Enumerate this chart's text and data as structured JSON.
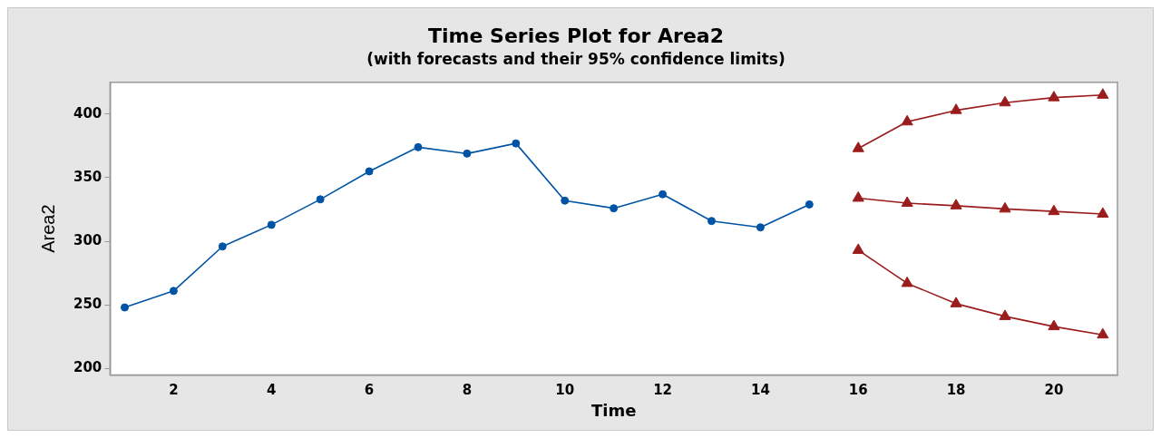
{
  "chart_data": {
    "type": "line",
    "title": "Time Series Plot for Area2",
    "subtitle": "(with forecasts and their 95% confidence limits)",
    "xlabel": "Time",
    "ylabel": "Area2",
    "xlim": [
      0.7,
      21.3
    ],
    "xticks": [
      2,
      4,
      6,
      8,
      10,
      12,
      14,
      16,
      18,
      20
    ],
    "ylim": [
      195,
      425
    ],
    "yticks": [
      200,
      250,
      300,
      350,
      400
    ],
    "grid": false,
    "legend": false,
    "line_style": "solid",
    "series": [
      {
        "color": "#0054a6",
        "marker": "circle",
        "x": [
          1,
          2,
          3,
          4,
          5,
          6,
          7,
          8,
          9,
          10,
          11,
          12,
          13,
          14,
          15
        ],
        "values": [
          248,
          261,
          296,
          313,
          333,
          355,
          374,
          369,
          377,
          332,
          326,
          337,
          316,
          311,
          329
        ]
      },
      {
        "color": "#9b1c1c",
        "marker": "triangle",
        "x": [
          16,
          17,
          18,
          19,
          20,
          21
        ],
        "values": [
          373,
          394,
          403,
          409,
          413,
          415
        ]
      },
      {
        "color": "#9b1c1c",
        "marker": "triangle",
        "x": [
          16,
          17,
          18,
          19,
          20,
          21
        ],
        "values": [
          334,
          330,
          328,
          325.5,
          323.5,
          321.5
        ]
      },
      {
        "color": "#9b1c1c",
        "marker": "triangle",
        "x": [
          16,
          17,
          18,
          19,
          20,
          21
        ],
        "values": [
          293,
          267,
          251,
          241,
          233,
          226.5
        ]
      }
    ]
  }
}
